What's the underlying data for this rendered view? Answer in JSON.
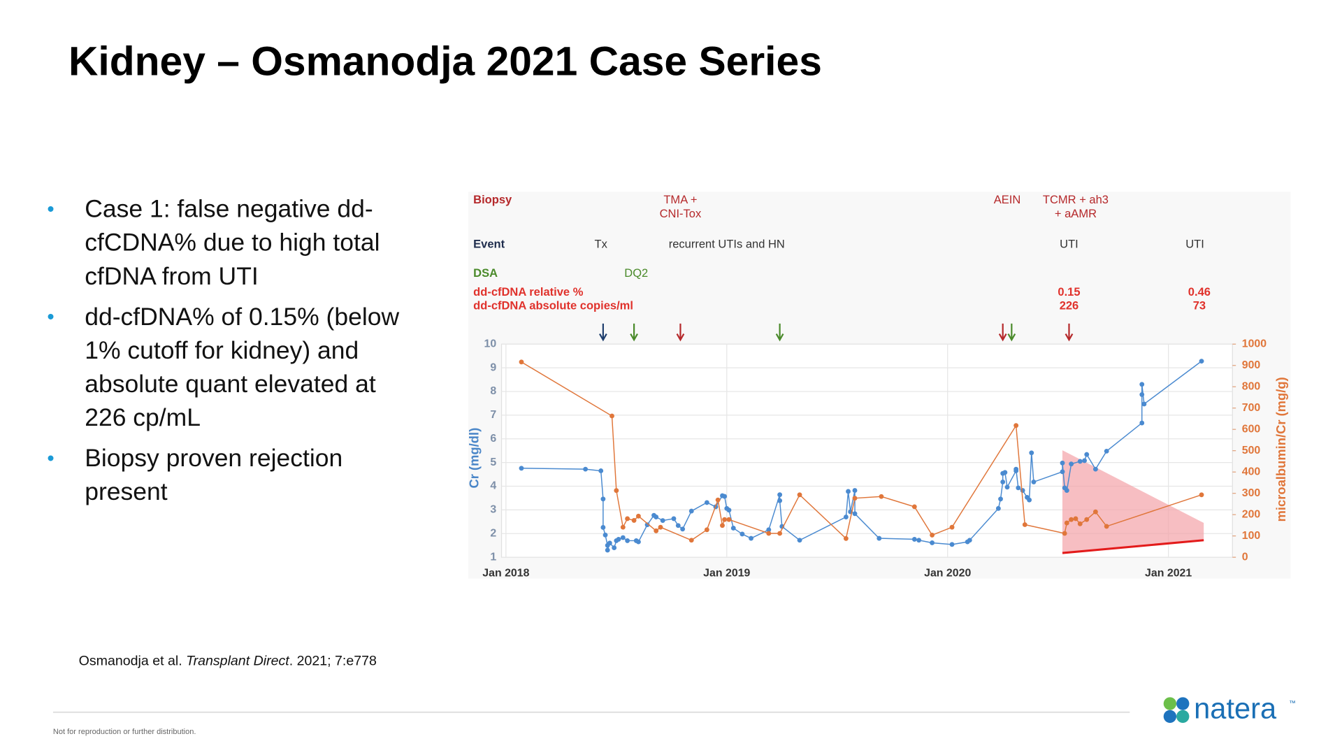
{
  "slide": {
    "title": "Kidney – Osmanodja 2021 Case Series",
    "bullets": [
      [
        "Case 1: false negative dd-",
        "cfCDNA% due to high total",
        "cfDNA from UTI"
      ],
      [
        "dd-cfDNA% of 0.15% (below",
        "1% cutoff for kidney) and",
        "absolute quant elevated at",
        "226 cp/mL"
      ],
      [
        "Biopsy proven rejection",
        "present"
      ]
    ],
    "bullet_marker": "•",
    "citation": {
      "authors": "Osmanodja et al. ",
      "journal": "Transplant Direct",
      "details": ". 2021; 7:e778"
    },
    "footer": "Not for reproduction or further distribution.",
    "logo": {
      "text": "natera",
      "mark": "™"
    }
  },
  "chart_data": {
    "type": "line",
    "y_label": "Cr (mg/dl)",
    "y2_label": "microalbumin/Cr (mg/g)",
    "xlim": [
      2017.98,
      2021.29
    ],
    "ylim": [
      1,
      10
    ],
    "y2lim": [
      0,
      1000
    ],
    "xticks": [
      {
        "value": 2018,
        "label": "Jan 2018"
      },
      {
        "value": 2019,
        "label": "Jan 2019"
      },
      {
        "value": 2020,
        "label": "Jan 2020"
      },
      {
        "value": 2021,
        "label": "Jan 2021"
      }
    ],
    "yticks": [
      1,
      2,
      3,
      4,
      5,
      6,
      7,
      8,
      9,
      10
    ],
    "y2ticks": [
      0,
      100,
      200,
      300,
      400,
      500,
      600,
      700,
      800,
      900,
      1000
    ],
    "grid": true,
    "series": [
      {
        "color": "#4a8ad0",
        "axis": "y",
        "x": [
          2018.07,
          2018.36,
          2018.43,
          2018.44,
          2018.44,
          2018.45,
          2018.46,
          2018.46,
          2018.47,
          2018.49,
          2018.5,
          2018.51,
          2018.53,
          2018.55,
          2018.59,
          2018.6,
          2018.64,
          2018.67,
          2018.68,
          2018.71,
          2018.76,
          2018.78,
          2018.8,
          2018.84,
          2018.91,
          2018.95,
          2018.98,
          2018.99,
          2019.0,
          2019.01,
          2019.03,
          2019.07,
          2019.11,
          2019.19,
          2019.24,
          2019.24,
          2019.25,
          2019.33,
          2019.54,
          2019.55,
          2019.56,
          2019.58,
          2019.58,
          2019.69,
          2019.85,
          2019.87,
          2019.93,
          2020.02,
          2020.09,
          2020.1,
          2020.23,
          2020.24,
          2020.25,
          2020.25,
          2020.26,
          2020.27,
          2020.31,
          2020.31,
          2020.32,
          2020.34,
          2020.36,
          2020.37,
          2020.38,
          2020.39,
          2020.52,
          2020.52,
          2020.53,
          2020.54,
          2020.56,
          2020.6,
          2020.62,
          2020.63,
          2020.67,
          2020.72,
          2020.88,
          2020.88,
          2020.88,
          2020.89,
          2021.15
        ],
        "values": [
          4.76,
          4.72,
          4.65,
          3.46,
          2.26,
          1.94,
          1.5,
          1.3,
          1.6,
          1.4,
          1.7,
          1.76,
          1.83,
          1.7,
          1.7,
          1.65,
          2.37,
          2.77,
          2.7,
          2.55,
          2.63,
          2.34,
          2.19,
          2.95,
          3.31,
          3.13,
          3.6,
          3.57,
          3.06,
          2.99,
          2.23,
          1.98,
          1.8,
          2.16,
          3.64,
          3.39,
          2.3,
          1.72,
          2.7,
          3.78,
          2.92,
          3.82,
          2.84,
          1.8,
          1.76,
          1.72,
          1.61,
          1.54,
          1.65,
          1.72,
          3.06,
          3.46,
          4.18,
          4.54,
          4.58,
          3.96,
          4.65,
          4.72,
          3.93,
          3.82,
          3.53,
          3.42,
          5.41,
          4.18,
          4.61,
          4.98,
          3.93,
          3.82,
          4.94,
          5.05,
          5.08,
          5.34,
          4.72,
          5.48,
          6.67,
          7.87,
          8.3,
          7.47,
          9.28
        ]
      },
      {
        "color": "#e0763a",
        "axis": "y2",
        "x": [
          2018.07,
          2018.48,
          2018.5,
          2018.53,
          2018.55,
          2018.58,
          2018.6,
          2018.68,
          2018.7,
          2018.84,
          2018.91,
          2018.96,
          2018.98,
          2018.99,
          2019.01,
          2019.19,
          2019.24,
          2019.33,
          2019.54,
          2019.58,
          2019.7,
          2019.85,
          2019.93,
          2020.02,
          2020.31,
          2020.35,
          2020.53,
          2020.54,
          2020.56,
          2020.58,
          2020.6,
          2020.63,
          2020.67,
          2020.72,
          2021.15
        ],
        "values": [
          916,
          663,
          313,
          141,
          181,
          173,
          193,
          124,
          141,
          80,
          129,
          269,
          149,
          177,
          177,
          112,
          112,
          293,
          88,
          277,
          285,
          237,
          104,
          141,
          618,
          153,
          112,
          161,
          177,
          181,
          157,
          177,
          213,
          145,
          293
        ]
      },
      {
        "color": "#e31b1b",
        "axis": "y2",
        "markers": false,
        "x": [
          2020.52,
          2021.16
        ],
        "values": [
          20,
          80
        ]
      }
    ],
    "band": {
      "color": "#f4a3a8",
      "axis": "y2",
      "x": [
        2020.52,
        2021.16
      ],
      "upper": [
        502,
        161
      ],
      "lower": [
        20,
        80
      ]
    },
    "annotation_rows": [
      {
        "label": "Biopsy",
        "color": "#b5292b",
        "item_color": "#b5292b",
        "items": [
          {
            "x": 2018.79,
            "lines": [
              "TMA +",
              "CNI-Tox"
            ]
          },
          {
            "x": 2020.27,
            "lines": [
              "AEIN"
            ]
          },
          {
            "x": 2020.58,
            "lines": [
              "TCMR + ah3",
              "+ aAMR"
            ]
          }
        ]
      },
      {
        "label": "Event",
        "color": "#1f2d4d",
        "item_color": "#333333",
        "items": [
          {
            "x": 2018.43,
            "lines": [
              "Tx"
            ]
          },
          {
            "x": 2019.0,
            "lines": [
              "recurrent UTIs and HN"
            ]
          },
          {
            "x": 2020.55,
            "lines": [
              "UTI"
            ]
          },
          {
            "x": 2021.12,
            "lines": [
              "UTI"
            ]
          }
        ]
      },
      {
        "label": "DSA",
        "color": "#4a8a2a",
        "item_color": "#4a8a2a",
        "items": [
          {
            "x": 2018.59,
            "lines": [
              "DQ2"
            ]
          }
        ]
      },
      {
        "label": "dd-cfDNA relative %",
        "color": "#e0322c",
        "item_color": "#e0322c",
        "items": [
          {
            "x": 2020.55,
            "value": 0.15
          },
          {
            "x": 2021.14,
            "value": 0.46
          }
        ]
      },
      {
        "label": "dd-cfDNA absolute copies/ml",
        "color": "#e0322c",
        "item_color": "#e0322c",
        "items": [
          {
            "x": 2020.55,
            "value": 226
          },
          {
            "x": 2021.14,
            "value": 73
          }
        ]
      }
    ],
    "arrows": [
      {
        "x": 2018.44,
        "color": "#1f3f6e"
      },
      {
        "x": 2018.58,
        "color": "#4a8a2a"
      },
      {
        "x": 2018.79,
        "color": "#b5292b"
      },
      {
        "x": 2019.24,
        "color": "#4a8a2a"
      },
      {
        "x": 2020.25,
        "color": "#b5292b"
      },
      {
        "x": 2020.29,
        "color": "#4a8a2a"
      },
      {
        "x": 2020.55,
        "color": "#b5292b"
      }
    ]
  }
}
